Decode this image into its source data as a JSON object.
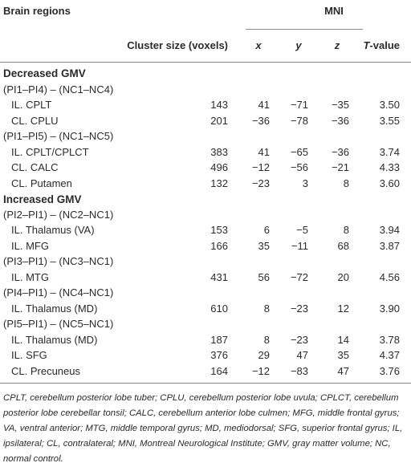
{
  "header": {
    "title": "Brain regions",
    "cluster": "Cluster size (voxels)",
    "mni": "MNI",
    "x": "x",
    "y": "y",
    "z": "z",
    "t": "T-value"
  },
  "sections": [
    {
      "title": "Decreased GMV",
      "groups": [
        {
          "contrast": "(PI1–PI4) – (NC1–NC4)",
          "rows": [
            [
              "IL. CPLT",
              "143",
              "41",
              "−71",
              "−35",
              "3.50"
            ],
            [
              "CL. CPLU",
              "201",
              "−36",
              "−78",
              "−36",
              "3.55"
            ]
          ]
        },
        {
          "contrast": "(PI1–PI5) – (NC1–NC5)",
          "rows": [
            [
              "IL. CPLT/CPLCT",
              "383",
              "41",
              "−65",
              "−36",
              "3.74"
            ],
            [
              "CL. CALC",
              "496",
              "−12",
              "−56",
              "−21",
              "4.33"
            ],
            [
              "CL. Putamen",
              "132",
              "−23",
              "3",
              "8",
              "3.60"
            ]
          ]
        }
      ]
    },
    {
      "title": "Increased GMV",
      "groups": [
        {
          "contrast": "(PI2–PI1) – (NC2–NC1)",
          "rows": [
            [
              "IL. Thalamus (VA)",
              "153",
              "6",
              "−5",
              "8",
              "3.94"
            ],
            [
              "IL. MFG",
              "166",
              "35",
              "−11",
              "68",
              "3.87"
            ]
          ]
        },
        {
          "contrast": "(PI3–PI1) – (NC3–NC1)",
          "rows": [
            [
              "IL. MTG",
              "431",
              "56",
              "−72",
              "20",
              "4.56"
            ]
          ]
        },
        {
          "contrast": "(PI4–PI1) – (NC4–NC1)",
          "rows": [
            [
              "IL. Thalamus (MD)",
              "610",
              "8",
              "−23",
              "12",
              "3.90"
            ]
          ]
        },
        {
          "contrast": "(PI5–PI1) – (NC5–NC1)",
          "rows": [
            [
              "IL. Thalamus (MD)",
              "187",
              "8",
              "−23",
              "14",
              "3.78"
            ],
            [
              "IL. SFG",
              "376",
              "29",
              "47",
              "35",
              "4.37"
            ],
            [
              "CL. Precuneus",
              "164",
              "−12",
              "−83",
              "47",
              "3.76"
            ]
          ]
        }
      ]
    }
  ],
  "footnote": "CPLT, cerebellum posterior lobe tuber; CPLU, cerebellum posterior lobe uvula; CPLCT, cerebellum posterior lobe cerebellar tonsil; CALC, cerebellum anterior lobe culmen; MFG, middle frontal gyrus; VA, ventral anterior; MTG, middle temporal gyrus; MD, mediodorsal; SFG, superior frontal gyrus; IL, ipsilateral; CL, contralateral; MNI, Montreal Neurological Institute; GMV, gray matter volume; NC, normal control."
}
